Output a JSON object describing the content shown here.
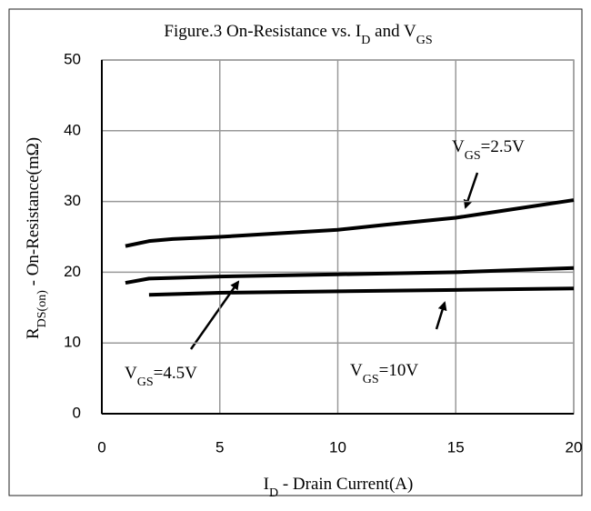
{
  "chart_data": {
    "type": "line",
    "title": [
      "Figure.3 On-Resistance vs. I",
      "D",
      " and V",
      "GS"
    ],
    "x_label": [
      "I",
      "D",
      " - Drain Current(A)"
    ],
    "y_label": [
      "R",
      "DS(on)",
      " - On-Resistance(mΩ)"
    ],
    "xlim": [
      0,
      20
    ],
    "xticks": [
      0,
      5,
      10,
      15,
      20
    ],
    "ylim": [
      0,
      50
    ],
    "yticks": [
      0,
      10,
      20,
      30,
      40,
      50
    ],
    "grid": true,
    "series": [
      {
        "color": "#000000",
        "x": [
          1,
          2,
          3,
          5,
          7,
          10,
          12,
          15,
          17,
          20
        ],
        "values": [
          23.7,
          24.4,
          24.7,
          25.0,
          25.4,
          26.0,
          26.7,
          27.7,
          28.7,
          30.2
        ]
      },
      {
        "color": "#000000",
        "x": [
          1,
          2,
          5,
          10,
          15,
          20
        ],
        "values": [
          18.5,
          19.1,
          19.4,
          19.7,
          20.0,
          20.6
        ]
      },
      {
        "color": "#000000",
        "x": [
          2,
          5,
          10,
          15,
          20
        ],
        "values": [
          16.8,
          17.1,
          17.3,
          17.5,
          17.7
        ]
      }
    ],
    "annotations": [
      {
        "text": [
          "V",
          "GS",
          "=2.5V"
        ]
      },
      {
        "text": [
          "V",
          "GS",
          "=4.5V"
        ]
      },
      {
        "text": [
          "V",
          "GS",
          "=10V"
        ]
      }
    ]
  }
}
